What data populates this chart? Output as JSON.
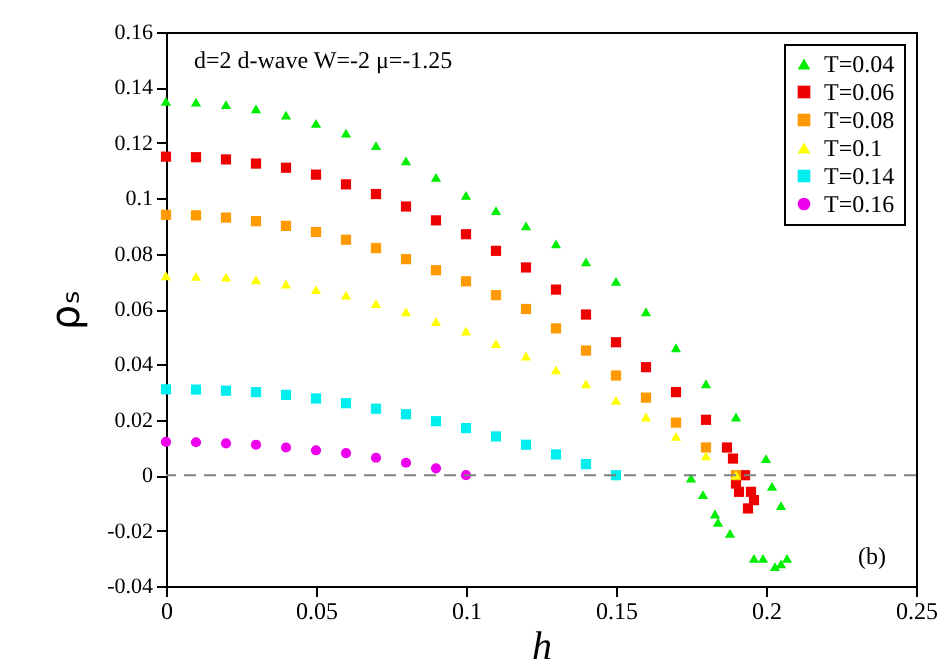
{
  "chart_data": {
    "type": "scatter",
    "xlabel": "h",
    "ylabel": "ρₛ",
    "xlim": [
      0,
      0.25
    ],
    "ylim": [
      -0.04,
      0.16
    ],
    "xticks": [
      0,
      0.05,
      0.1,
      0.15,
      0.2,
      0.25
    ],
    "yticks": [
      -0.04,
      -0.02,
      0,
      0.02,
      0.04,
      0.06,
      0.08,
      0.1,
      0.12,
      0.14,
      0.16
    ],
    "grid": false,
    "legend": "top right",
    "annotations": [
      "d=2 d-wave W=-2 μ=-1.25",
      "(b)"
    ],
    "ref_lines": [
      {
        "axis": "y",
        "value": 0,
        "color": "#808080",
        "line_style": "dashed"
      }
    ],
    "series": [
      {
        "name": "T=0.04",
        "color": "#00ee00",
        "marker": "triangle",
        "x": [
          0,
          0.01,
          0.02,
          0.03,
          0.04,
          0.05,
          0.06,
          0.07,
          0.08,
          0.09,
          0.1,
          0.11,
          0.12,
          0.13,
          0.14,
          0.15,
          0.16,
          0.17,
          0.18,
          0.19,
          0.2,
          0.202,
          0.205,
          0.207,
          0.205,
          0.203,
          0.199,
          0.196,
          0.188,
          0.184,
          0.183,
          0.179,
          0.175
        ],
        "values": [
          0.135,
          0.1347,
          0.1338,
          0.1323,
          0.13,
          0.127,
          0.1235,
          0.119,
          0.1135,
          0.1075,
          0.101,
          0.0955,
          0.09,
          0.0835,
          0.077,
          0.07,
          0.059,
          0.046,
          0.033,
          0.021,
          0.006,
          -0.004,
          -0.011,
          -0.03,
          -0.032,
          -0.033,
          -0.03,
          -0.03,
          -0.021,
          -0.017,
          -0.014,
          -0.007,
          -0.001
        ]
      },
      {
        "name": "T=0.06",
        "color": "#ee0000",
        "marker": "square",
        "x": [
          0,
          0.01,
          0.02,
          0.03,
          0.04,
          0.05,
          0.06,
          0.07,
          0.08,
          0.09,
          0.1,
          0.11,
          0.12,
          0.13,
          0.14,
          0.15,
          0.16,
          0.17,
          0.18,
          0.187,
          0.189,
          0.19,
          0.191,
          0.194,
          0.196,
          0.195,
          0.193
        ],
        "values": [
          0.115,
          0.1148,
          0.114,
          0.1125,
          0.111,
          0.1085,
          0.105,
          0.1015,
          0.097,
          0.092,
          0.087,
          0.081,
          0.075,
          0.067,
          0.058,
          0.048,
          0.039,
          0.03,
          0.02,
          0.01,
          0.006,
          -0.003,
          -0.006,
          -0.012,
          -0.009,
          -0.006,
          0
        ]
      },
      {
        "name": "T=0.08",
        "color": "#ff9900",
        "marker": "square",
        "x": [
          0,
          0.01,
          0.02,
          0.03,
          0.04,
          0.05,
          0.06,
          0.07,
          0.08,
          0.09,
          0.1,
          0.11,
          0.12,
          0.13,
          0.14,
          0.15,
          0.16,
          0.17,
          0.18,
          0.19
        ],
        "values": [
          0.094,
          0.0938,
          0.093,
          0.0917,
          0.09,
          0.0878,
          0.085,
          0.082,
          0.078,
          0.074,
          0.07,
          0.065,
          0.06,
          0.053,
          0.045,
          0.036,
          0.028,
          0.019,
          0.01,
          0
        ]
      },
      {
        "name": "T=0.1",
        "color": "#ffff00",
        "marker": "triangle",
        "x": [
          0,
          0.01,
          0.02,
          0.03,
          0.04,
          0.05,
          0.06,
          0.07,
          0.08,
          0.09,
          0.1,
          0.11,
          0.12,
          0.13,
          0.14,
          0.15,
          0.16,
          0.17,
          0.18,
          0.19
        ],
        "values": [
          0.072,
          0.0718,
          0.0715,
          0.0705,
          0.069,
          0.067,
          0.065,
          0.062,
          0.059,
          0.0555,
          0.052,
          0.0475,
          0.043,
          0.038,
          0.033,
          0.027,
          0.021,
          0.014,
          0.007,
          0
        ]
      },
      {
        "name": "T=0.14",
        "color": "#00eeee",
        "marker": "square",
        "x": [
          0,
          0.01,
          0.02,
          0.03,
          0.04,
          0.05,
          0.06,
          0.07,
          0.08,
          0.09,
          0.1,
          0.11,
          0.12,
          0.13,
          0.14,
          0.15
        ],
        "values": [
          0.031,
          0.0309,
          0.0305,
          0.03,
          0.029,
          0.0277,
          0.026,
          0.024,
          0.022,
          0.0195,
          0.017,
          0.014,
          0.011,
          0.0075,
          0.004,
          0
        ]
      },
      {
        "name": "T=0.16",
        "color": "#ee00ee",
        "marker": "circle",
        "x": [
          0,
          0.01,
          0.02,
          0.03,
          0.04,
          0.05,
          0.06,
          0.07,
          0.08,
          0.09,
          0.1
        ],
        "values": [
          0.012,
          0.0119,
          0.0115,
          0.011,
          0.01,
          0.009,
          0.008,
          0.0063,
          0.0045,
          0.0025,
          0
        ]
      }
    ]
  }
}
